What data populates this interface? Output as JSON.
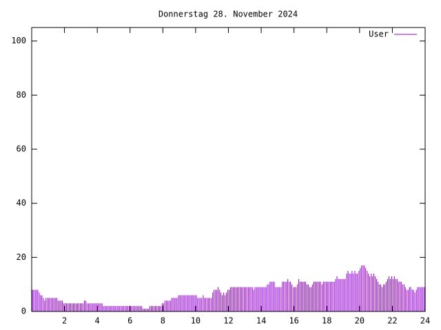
{
  "chart_data": {
    "type": "impulse",
    "title": "Donnerstag 28. November 2024",
    "x": [
      0,
      0.08,
      0.17,
      0.25,
      0.33,
      0.42,
      0.5,
      0.58,
      0.67,
      0.75,
      0.83,
      0.92,
      1,
      1.08,
      1.17,
      1.25,
      1.33,
      1.42,
      1.5,
      1.58,
      1.67,
      1.75,
      1.83,
      1.92,
      2,
      2.08,
      2.17,
      2.25,
      2.33,
      2.42,
      2.5,
      2.58,
      2.67,
      2.75,
      2.83,
      2.92,
      3,
      3.08,
      3.17,
      3.25,
      3.33,
      3.42,
      3.5,
      3.58,
      3.67,
      3.75,
      3.83,
      3.92,
      4,
      4.08,
      4.17,
      4.25,
      4.33,
      4.42,
      4.5,
      4.58,
      4.67,
      4.75,
      4.83,
      4.92,
      5,
      5.08,
      5.17,
      5.25,
      5.33,
      5.42,
      5.5,
      5.58,
      5.67,
      5.75,
      5.83,
      5.92,
      6,
      6.08,
      6.17,
      6.25,
      6.33,
      6.42,
      6.5,
      6.58,
      6.67,
      6.75,
      6.83,
      6.92,
      7,
      7.08,
      7.17,
      7.25,
      7.33,
      7.42,
      7.5,
      7.58,
      7.67,
      7.75,
      7.83,
      7.92,
      8,
      8.08,
      8.17,
      8.25,
      8.33,
      8.42,
      8.5,
      8.58,
      8.67,
      8.75,
      8.83,
      8.92,
      9,
      9.08,
      9.17,
      9.25,
      9.33,
      9.42,
      9.5,
      9.58,
      9.67,
      9.75,
      9.83,
      9.92,
      10,
      10.08,
      10.17,
      10.25,
      10.33,
      10.42,
      10.5,
      10.58,
      10.67,
      10.75,
      10.83,
      10.92,
      11,
      11.08,
      11.17,
      11.25,
      11.33,
      11.42,
      11.5,
      11.58,
      11.67,
      11.75,
      11.83,
      11.92,
      12,
      12.08,
      12.17,
      12.25,
      12.33,
      12.42,
      12.5,
      12.58,
      12.67,
      12.75,
      12.83,
      12.92,
      13,
      13.08,
      13.17,
      13.25,
      13.33,
      13.42,
      13.5,
      13.58,
      13.67,
      13.75,
      13.83,
      13.92,
      14,
      14.08,
      14.17,
      14.25,
      14.33,
      14.42,
      14.5,
      14.58,
      14.67,
      14.75,
      14.83,
      14.92,
      15,
      15.08,
      15.17,
      15.25,
      15.33,
      15.42,
      15.5,
      15.58,
      15.67,
      15.75,
      15.83,
      15.92,
      16,
      16.08,
      16.17,
      16.25,
      16.33,
      16.42,
      16.5,
      16.58,
      16.67,
      16.75,
      16.83,
      16.92,
      17,
      17.08,
      17.17,
      17.25,
      17.33,
      17.42,
      17.5,
      17.58,
      17.67,
      17.75,
      17.83,
      17.92,
      18,
      18.08,
      18.17,
      18.25,
      18.33,
      18.42,
      18.5,
      18.58,
      18.67,
      18.75,
      18.83,
      18.92,
      19,
      19.08,
      19.17,
      19.25,
      19.33,
      19.42,
      19.5,
      19.58,
      19.67,
      19.75,
      19.83,
      19.92,
      20,
      20.08,
      20.17,
      20.25,
      20.33,
      20.42,
      20.5,
      20.58,
      20.67,
      20.75,
      20.83,
      20.92,
      21,
      21.08,
      21.17,
      21.25,
      21.33,
      21.42,
      21.5,
      21.58,
      21.67,
      21.75,
      21.83,
      21.92,
      22,
      22.08,
      22.17,
      22.25,
      22.33,
      22.42,
      22.5,
      22.58,
      22.67,
      22.75,
      22.83,
      22.92,
      23,
      23.08,
      23.17,
      23.25,
      23.33,
      23.42,
      23.5,
      23.58,
      23.67,
      23.75,
      23.83,
      23.92
    ],
    "series": [
      {
        "name": "User",
        "color": "#9400d3",
        "values": [
          8,
          8,
          8,
          8,
          8,
          7,
          6,
          6,
          5,
          4,
          5,
          5,
          5,
          5,
          5,
          5,
          5,
          5,
          5,
          4,
          4,
          4,
          4,
          3,
          3,
          3,
          3,
          3,
          3,
          3,
          3,
          3,
          3,
          3,
          3,
          3,
          3,
          3,
          4,
          4,
          3,
          3,
          3,
          3,
          3,
          3,
          3,
          3,
          3,
          3,
          3,
          3,
          2,
          2,
          2,
          2,
          2,
          2,
          2,
          2,
          2,
          2,
          2,
          2,
          2,
          2,
          2,
          2,
          2,
          2,
          2,
          2,
          2,
          2,
          2,
          2,
          2,
          2,
          2,
          2,
          2,
          1,
          1,
          1,
          1,
          1,
          2,
          2,
          2,
          2,
          2,
          2,
          2,
          2,
          2,
          3,
          3,
          4,
          4,
          4,
          4,
          4,
          5,
          5,
          5,
          5,
          5,
          6,
          6,
          6,
          6,
          6,
          6,
          6,
          6,
          6,
          6,
          6,
          6,
          6,
          6,
          5,
          5,
          5,
          5,
          6,
          5,
          5,
          5,
          5,
          5,
          5,
          7,
          8,
          8,
          8,
          9,
          8,
          7,
          6,
          7,
          6,
          7,
          8,
          8,
          9,
          9,
          9,
          9,
          9,
          9,
          9,
          9,
          9,
          9,
          9,
          9,
          9,
          9,
          9,
          9,
          9,
          8,
          9,
          9,
          9,
          9,
          9,
          9,
          9,
          9,
          9,
          10,
          10,
          11,
          11,
          11,
          11,
          9,
          9,
          9,
          9,
          9,
          11,
          11,
          11,
          11,
          12,
          11,
          11,
          10,
          9,
          9,
          9,
          10,
          12,
          11,
          11,
          11,
          11,
          11,
          10,
          10,
          9,
          9,
          10,
          11,
          11,
          11,
          11,
          11,
          11,
          10,
          11,
          11,
          11,
          11,
          11,
          11,
          11,
          11,
          11,
          12,
          13,
          12,
          12,
          12,
          12,
          12,
          12,
          14,
          15,
          14,
          14,
          15,
          14,
          15,
          14,
          14,
          15,
          16,
          17,
          17,
          17,
          16,
          15,
          14,
          13,
          14,
          13,
          14,
          13,
          12,
          11,
          10,
          10,
          9,
          10,
          10,
          11,
          12,
          13,
          12,
          13,
          12,
          13,
          12,
          12,
          11,
          11,
          11,
          10,
          10,
          9,
          8,
          8,
          9,
          9,
          8,
          8,
          7,
          8,
          9,
          9,
          9,
          9,
          9,
          9
        ]
      }
    ],
    "xlim": [
      0,
      24
    ],
    "xticks": [
      2,
      4,
      6,
      8,
      10,
      12,
      14,
      16,
      18,
      20,
      22,
      24
    ],
    "ylim": [
      0,
      105
    ],
    "yticks": [
      0,
      20,
      40,
      60,
      80,
      100
    ],
    "legend": "top-right"
  }
}
